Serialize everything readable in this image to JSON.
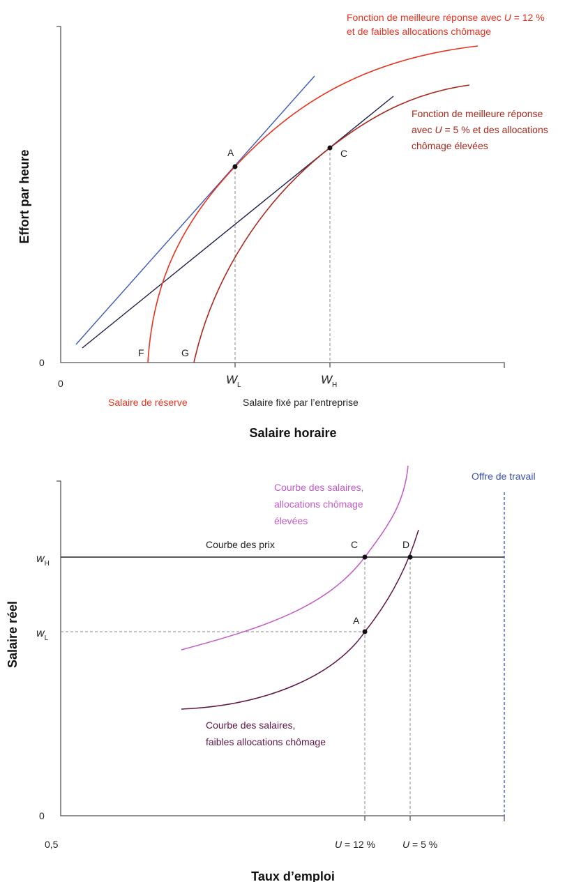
{
  "colors": {
    "red_curve": "#e8321e",
    "dark_red_curve": "#a8281c",
    "blue_line": "#3b58b8",
    "navy_line": "#1c1f4e",
    "pink_curve": "#c25ac6",
    "purple_curve": "#5e1545",
    "labor_supply": "#3a4fa8"
  },
  "top": {
    "y_axis_title": "Effort par heure",
    "x_axis_title": "Salaire horaire",
    "y_zero": "0",
    "x_zero": "0",
    "red_label_line1_pre": "Fonction de meilleure réponse avec ",
    "red_label_line1_var": "U",
    "red_label_line1_post": " = 12 %",
    "red_label_line2": "et de faibles allocations chômage",
    "darkred_label_line1": "Fonction de meilleure réponse",
    "darkred_label_line2_pre": "avec ",
    "darkred_label_line2_var": "U",
    "darkred_label_line2_post": " = 5 % et des allocations",
    "darkred_label_line3": "chômage élevées",
    "point_a": "A",
    "point_c": "C",
    "point_f": "F",
    "point_g": "G",
    "wl_main": "W",
    "wl_sub": "L",
    "wh_main": "W",
    "wh_sub": "H",
    "reservation_wage": "Salaire de réserve",
    "firm_wage": "Salaire fixé par l’entreprise"
  },
  "bottom": {
    "y_axis_title": "Salaire réel",
    "x_axis_title": "Taux d’emploi",
    "y_zero": "0",
    "x_start": "0,5",
    "pink_label_line1": "Courbe des salaires,",
    "pink_label_line2": "allocations chômage",
    "pink_label_line3": "élevées",
    "labor_supply_label": "Offre de travail",
    "price_curve_label": "Courbe des prix",
    "purple_label_line1": "Courbe des salaires,",
    "purple_label_line2": "faibles allocations chômage",
    "point_c": "C",
    "point_d": "D",
    "point_a": "A",
    "wh_main": "w",
    "wh_sub": "H",
    "wl_main": "w",
    "wl_sub": "L",
    "u12_var": "U",
    "u12_post": " = 12 %",
    "u5_var": "U",
    "u5_post": " = 5 %"
  }
}
